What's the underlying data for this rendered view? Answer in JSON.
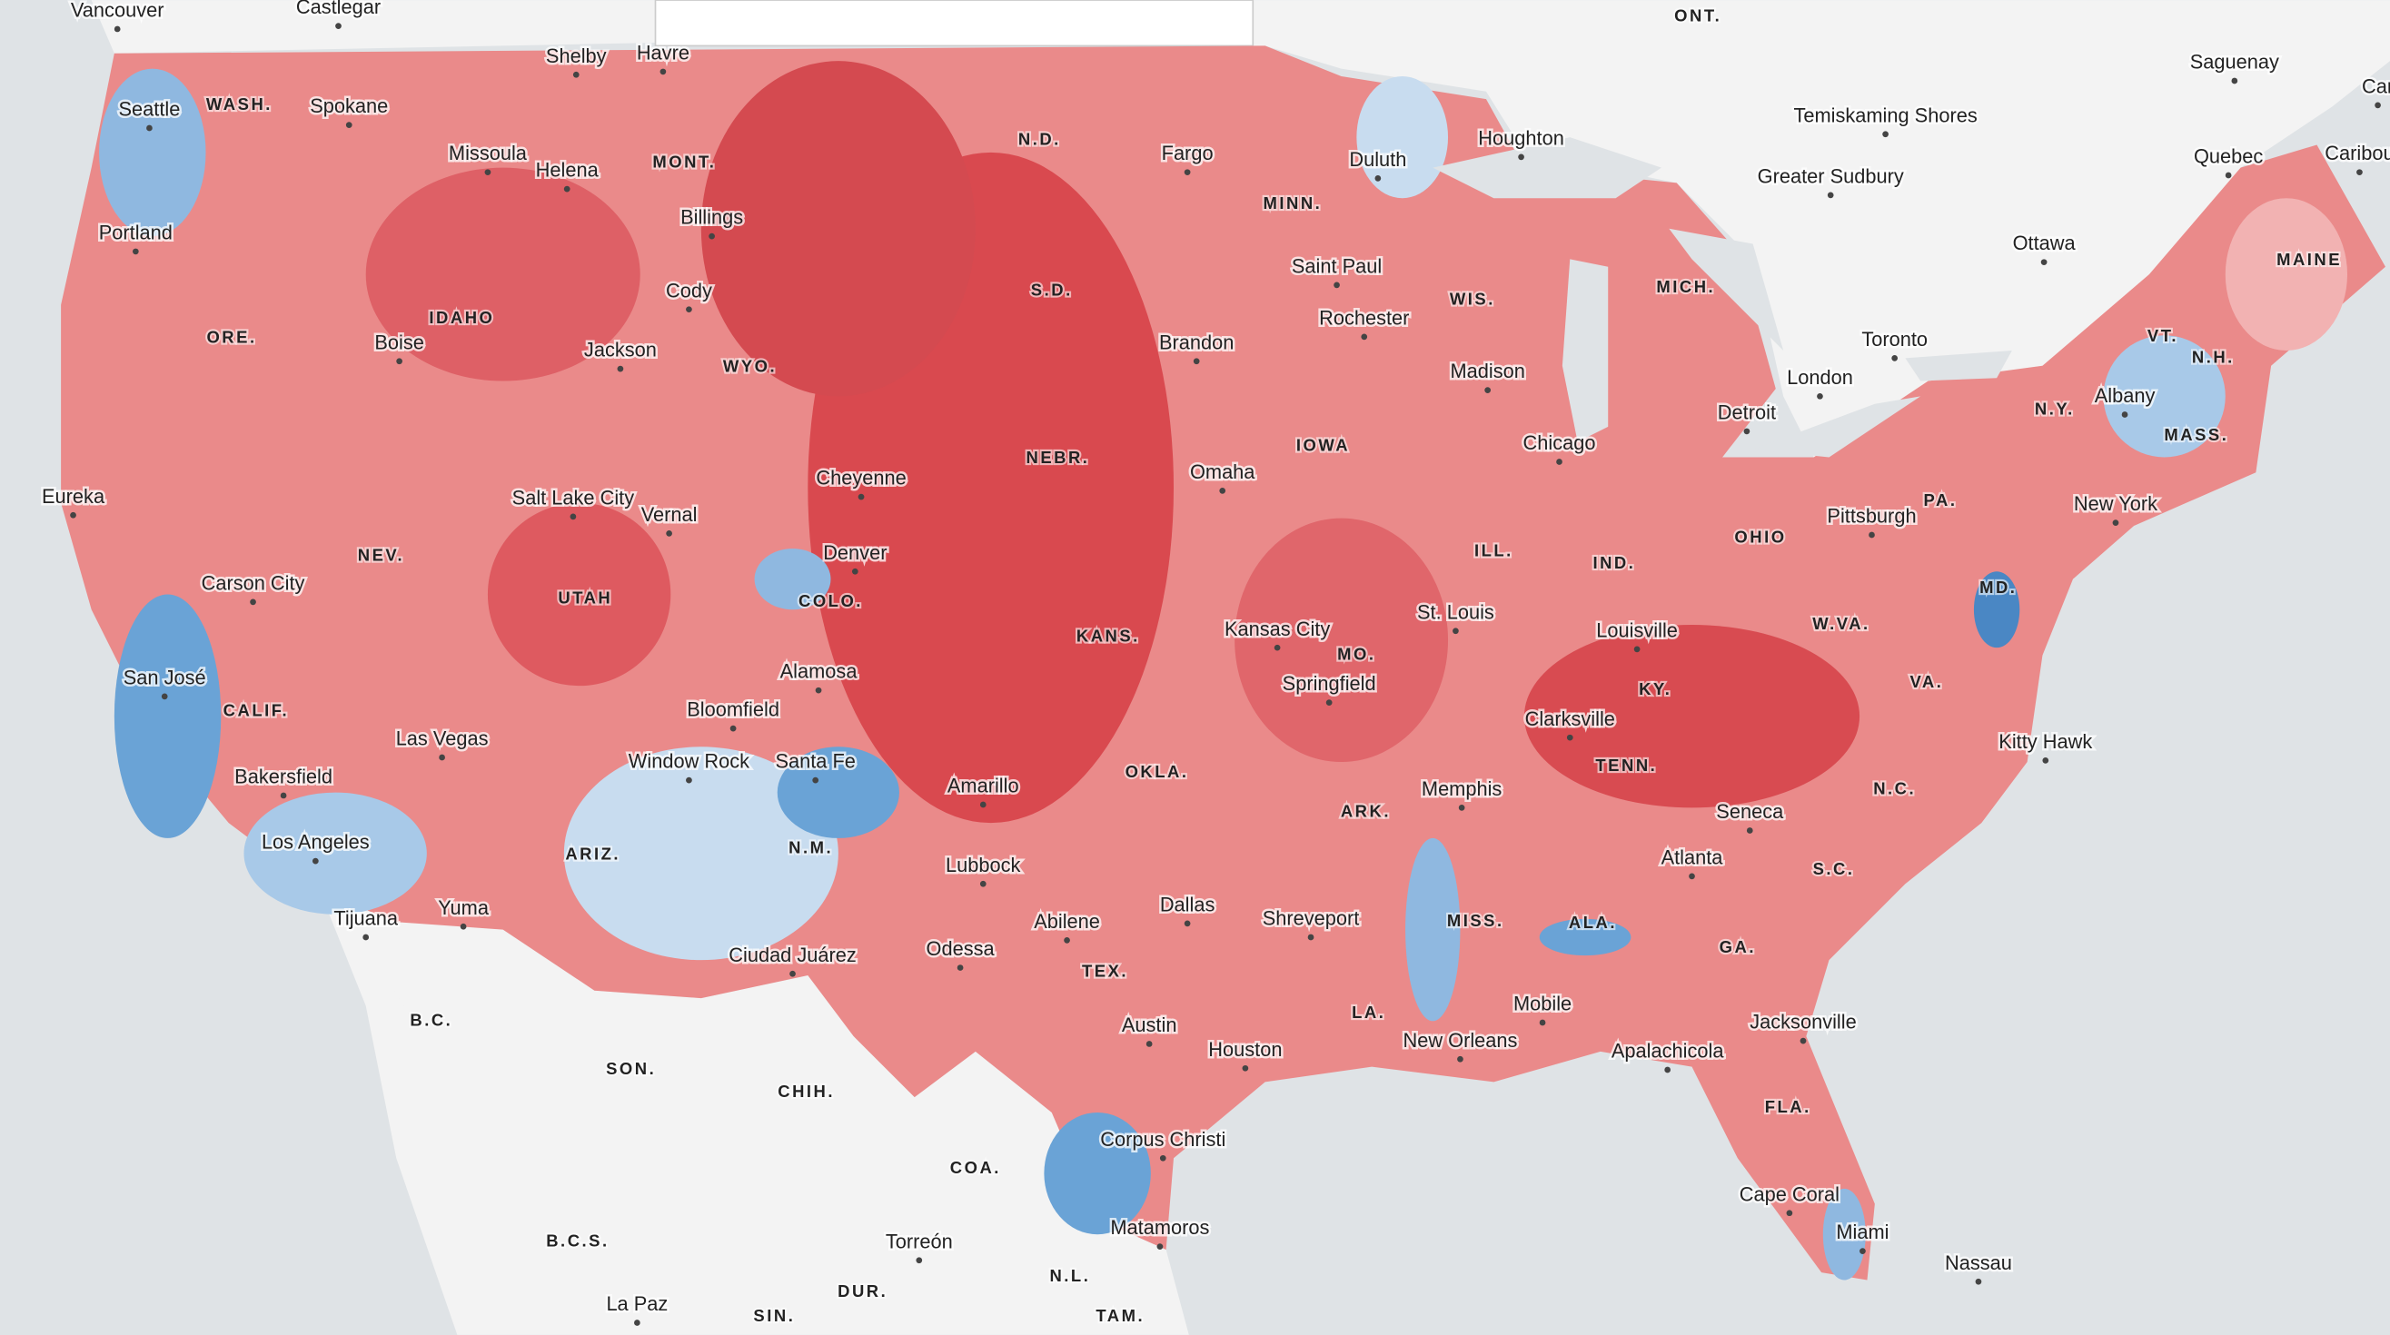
{
  "map": {
    "cities": [
      "Vancouver",
      "Castlegar",
      "Shelby",
      "Havre",
      "Seattle",
      "Spokane",
      "Missoula",
      "Helena",
      "Billings",
      "Portland",
      "Cody",
      "Boise",
      "Jackson",
      "Eureka",
      "Salt Lake City",
      "Vernal",
      "Cheyenne",
      "Carson City",
      "Denver",
      "San José",
      "Alamosa",
      "Bloomfield",
      "Las Vegas",
      "Window Rock",
      "Santa Fe",
      "Bakersfield",
      "Los Angeles",
      "Tijuana",
      "Yuma",
      "Amarillo",
      "Lubbock",
      "Ciudad Juárez",
      "Odessa",
      "Abilene",
      "Dallas",
      "Austin",
      "Houston",
      "Corpus Christi",
      "Matamoros",
      "Torreón",
      "La Paz",
      "Fargo",
      "Duluth",
      "Houghton",
      "Saint Paul",
      "Rochester",
      "Brandon",
      "Madison",
      "Omaha",
      "Chicago",
      "Detroit",
      "Kansas City",
      "St. Louis",
      "Springfield",
      "Louisville",
      "Clarksville",
      "Memphis",
      "Shreveport",
      "New Orleans",
      "Mobile",
      "Apalachicola",
      "Atlanta",
      "Seneca",
      "Jacksonville",
      "Cape Coral",
      "Miami",
      "Nassau",
      "Kitty Hawk",
      "Pittsburgh",
      "New York",
      "Albany",
      "Toronto",
      "London",
      "Greater Sudbury",
      "Ottawa",
      "Temiskaming Shores",
      "Saguenay",
      "Quebec",
      "Caribou",
      "Car"
    ],
    "regions": [
      "ONT.",
      "WASH.",
      "MONT.",
      "N.D.",
      "MINN.",
      "IDAHO",
      "ORE.",
      "WYO.",
      "S.D.",
      "WIS.",
      "MICH.",
      "IOWA",
      "NEBR.",
      "NEV.",
      "UTAH",
      "COLO.",
      "ILL.",
      "IND.",
      "OHIO",
      "PA.",
      "N.Y.",
      "VT.",
      "N.H.",
      "MASS.",
      "MAINE",
      "MD.",
      "W.VA.",
      "VA.",
      "KANS.",
      "MO.",
      "KY.",
      "CALIF.",
      "OKLA.",
      "TENN.",
      "N.C.",
      "ARK.",
      "ARIZ.",
      "N.M.",
      "S.C.",
      "MISS.",
      "ALA.",
      "GA.",
      "TEX.",
      "LA.",
      "FLA.",
      "B.C.",
      "SON.",
      "CHIH.",
      "COA.",
      "B.C.S.",
      "N.L.",
      "DUR.",
      "SIN.",
      "TAM."
    ]
  }
}
